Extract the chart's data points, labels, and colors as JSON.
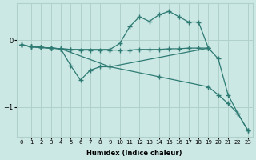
{
  "xlabel": "Humidex (Indice chaleur)",
  "bg_color": "#cce8e5",
  "line_color": "#2e7b73",
  "grid_color": "#b0d0cc",
  "xlim": [
    -0.5,
    23.5
  ],
  "ylim": [
    -1.45,
    0.55
  ],
  "yticks": [
    0,
    -1
  ],
  "xticks": [
    0,
    1,
    2,
    3,
    4,
    5,
    6,
    7,
    8,
    9,
    10,
    11,
    12,
    13,
    14,
    15,
    16,
    17,
    18,
    19,
    20,
    21,
    22,
    23
  ],
  "lines": [
    {
      "x": [
        0,
        1,
        2,
        3,
        4,
        5,
        6,
        7,
        8,
        9,
        10,
        11,
        12,
        13,
        14,
        15,
        16,
        17,
        18,
        19
      ],
      "y": [
        -0.07,
        -0.1,
        -0.11,
        -0.12,
        -0.13,
        -0.14,
        -0.15,
        -0.15,
        -0.15,
        -0.15,
        -0.15,
        -0.15,
        -0.14,
        -0.14,
        -0.14,
        -0.13,
        -0.13,
        -0.12,
        -0.12,
        -0.12
      ]
    },
    {
      "x": [
        0,
        1,
        2,
        3,
        4,
        5,
        9,
        10,
        11,
        12,
        13,
        14,
        15,
        16,
        17,
        18,
        19
      ],
      "y": [
        -0.07,
        -0.1,
        -0.11,
        -0.12,
        -0.13,
        -0.14,
        -0.14,
        -0.05,
        0.2,
        0.35,
        0.28,
        0.38,
        0.43,
        0.35,
        0.27,
        0.27,
        -0.12
      ]
    },
    {
      "x": [
        0,
        1,
        2,
        3,
        4,
        5,
        6,
        7,
        8,
        9,
        19,
        20,
        21,
        22,
        23
      ],
      "y": [
        -0.07,
        -0.1,
        -0.11,
        -0.12,
        -0.13,
        -0.38,
        -0.6,
        -0.45,
        -0.4,
        -0.4,
        -0.12,
        -0.28,
        -0.82,
        -1.1,
        -1.35
      ]
    },
    {
      "x": [
        0,
        1,
        2,
        3,
        4,
        9,
        14,
        19,
        20,
        21,
        22,
        23
      ],
      "y": [
        -0.07,
        -0.1,
        -0.11,
        -0.12,
        -0.13,
        -0.4,
        -0.55,
        -0.7,
        -0.82,
        -0.95,
        -1.1,
        -1.35
      ]
    }
  ]
}
